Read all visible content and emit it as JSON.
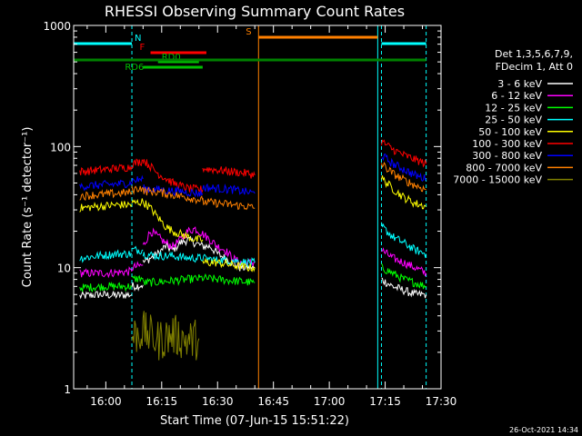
{
  "chart_data": {
    "type": "line",
    "title": "RHESSI Observing Summary Count Rates",
    "xlabel": "Start Time (07-Jun-15 15:51:22)",
    "ylabel": "Count Rate (s⁻¹ detector⁻¹)",
    "yscale": "log",
    "ylim": [
      1,
      1000
    ],
    "xlim": [
      "15:51:22",
      "17:30:00"
    ],
    "x_ticks": [
      "16:00",
      "16:15",
      "16:30",
      "16:45",
      "17:00",
      "17:15",
      "17:30"
    ],
    "y_ticks": [
      "1",
      "10",
      "100",
      "1000"
    ],
    "legend": {
      "placement": "right",
      "header": [
        "Det 1,3,5,6,7,9,",
        "FDecim 1, Att 0"
      ]
    },
    "series": [
      {
        "name": "3 - 6 keV",
        "color": "#ffffff",
        "segments": [
          {
            "x": [
              "15:53",
              "15:58",
              "16:03",
              "16:07"
            ],
            "y": [
              5.8,
              6.0,
              5.9,
              6.0
            ]
          },
          {
            "x": [
              "16:07",
              "16:10"
            ],
            "y": [
              7.0,
              7.2
            ]
          },
          {
            "x": [
              "16:10",
              "16:12",
              "16:14",
              "16:16",
              "16:18",
              "16:20",
              "16:22",
              "16:24",
              "16:26",
              "16:28",
              "16:30",
              "16:32",
              "16:34",
              "16:36",
              "16:38",
              "16:40"
            ],
            "y": [
              11,
              12,
              13,
              15,
              14,
              16,
              17,
              16,
              15,
              15,
              13,
              12,
              11,
              10,
              10,
              10
            ]
          },
          {
            "x": [
              "17:14",
              "17:17",
              "17:20",
              "17:23",
              "17:26"
            ],
            "y": [
              8,
              7,
              6.5,
              6,
              6
            ]
          }
        ]
      },
      {
        "name": "6 - 12 keV",
        "color": "#ff00ff",
        "segments": [
          {
            "x": [
              "15:53",
              "16:00",
              "16:07"
            ],
            "y": [
              9,
              9,
              9.3
            ]
          },
          {
            "x": [
              "16:07",
              "16:10"
            ],
            "y": [
              10,
              10.5
            ]
          },
          {
            "x": [
              "16:10",
              "16:12",
              "16:14",
              "16:16",
              "16:18",
              "16:20",
              "16:22",
              "16:24",
              "16:26",
              "16:28",
              "16:30",
              "16:32",
              "16:34",
              "16:36",
              "16:38",
              "16:40"
            ],
            "y": [
              15,
              20,
              18,
              16,
              15,
              17,
              20,
              21,
              19,
              17,
              15,
              14,
              12,
              11,
              11,
              11
            ]
          },
          {
            "x": [
              "17:14",
              "17:17",
              "17:20",
              "17:23",
              "17:26"
            ],
            "y": [
              14,
              12,
              11,
              10,
              9
            ]
          }
        ]
      },
      {
        "name": "12 - 25 keV",
        "color": "#00ff00",
        "segments": [
          {
            "x": [
              "15:53",
              "16:00",
              "16:07"
            ],
            "y": [
              6.8,
              7,
              7
            ]
          },
          {
            "x": [
              "16:07",
              "16:10"
            ],
            "y": [
              8,
              8.2
            ]
          },
          {
            "x": [
              "16:10",
              "16:14",
              "16:18",
              "16:22",
              "16:26",
              "16:30",
              "16:34",
              "16:40"
            ],
            "y": [
              7.5,
              7.6,
              7.8,
              8,
              8.2,
              8,
              7.8,
              7.5
            ]
          },
          {
            "x": [
              "17:14",
              "17:17",
              "17:20",
              "17:23",
              "17:26"
            ],
            "y": [
              10,
              9,
              8,
              7.5,
              7
            ]
          }
        ]
      },
      {
        "name": "25 - 50 keV",
        "color": "#00ffff",
        "segments": [
          {
            "x": [
              "15:53",
              "15:58",
              "16:03",
              "16:07"
            ],
            "y": [
              12,
              12.5,
              13,
              13
            ]
          },
          {
            "x": [
              "16:07",
              "16:10"
            ],
            "y": [
              14,
              14
            ]
          },
          {
            "x": [
              "16:10",
              "16:14",
              "16:18",
              "16:22",
              "16:26",
              "16:30",
              "16:34",
              "16:38",
              "16:40"
            ],
            "y": [
              13,
              12.5,
              12.5,
              12,
              12,
              11.5,
              11.5,
              11,
              11
            ]
          },
          {
            "x": [
              "17:14",
              "17:17",
              "17:20",
              "17:23",
              "17:26"
            ],
            "y": [
              22,
              18,
              16,
              14,
              13
            ]
          }
        ]
      },
      {
        "name": "50 - 100 keV",
        "color": "#ffff00",
        "segments": [
          {
            "x": [
              "15:53",
              "15:58",
              "16:03",
              "16:07"
            ],
            "y": [
              31,
              32,
              33,
              33
            ]
          },
          {
            "x": [
              "16:07",
              "16:10"
            ],
            "y": [
              34,
              35
            ]
          },
          {
            "x": [
              "16:10",
              "16:12",
              "16:14",
              "16:16",
              "16:18",
              "16:20",
              "16:22",
              "16:24",
              "16:26"
            ],
            "y": [
              35,
              31,
              26,
              22,
              20,
              19,
              18,
              17,
              17
            ]
          },
          {
            "x": [
              "16:26",
              "16:30",
              "16:34",
              "16:38",
              "16:40"
            ],
            "y": [
              11,
              11,
              10.5,
              10,
              10
            ]
          },
          {
            "x": [
              "17:14",
              "17:17",
              "17:20",
              "17:23",
              "17:26"
            ],
            "y": [
              55,
              45,
              38,
              34,
              32
            ]
          }
        ]
      },
      {
        "name": "100 - 300 keV",
        "color": "#ff0000",
        "segments": [
          {
            "x": [
              "15:53",
              "15:58",
              "16:03",
              "16:07"
            ],
            "y": [
              62,
              64,
              66,
              68
            ]
          },
          {
            "x": [
              "16:07",
              "16:10"
            ],
            "y": [
              72,
              76
            ]
          },
          {
            "x": [
              "16:10",
              "16:14",
              "16:18",
              "16:22",
              "16:26"
            ],
            "y": [
              78,
              60,
              50,
              45,
              44
            ]
          },
          {
            "x": [
              "16:26",
              "16:30",
              "16:34",
              "16:38",
              "16:40"
            ],
            "y": [
              66,
              64,
              62,
              60,
              58
            ]
          },
          {
            "x": [
              "17:14",
              "17:17",
              "17:20",
              "17:23",
              "17:26"
            ],
            "y": [
              110,
              95,
              85,
              78,
              72
            ]
          }
        ]
      },
      {
        "name": "300 - 800 keV",
        "color": "#0000ff",
        "segments": [
          {
            "x": [
              "15:53",
              "15:58",
              "16:03",
              "16:07"
            ],
            "y": [
              47,
              48,
              49,
              50
            ]
          },
          {
            "x": [
              "16:07",
              "16:10"
            ],
            "y": [
              52,
              54
            ]
          },
          {
            "x": [
              "16:10",
              "16:14",
              "16:18",
              "16:22",
              "16:26"
            ],
            "y": [
              45,
              44,
              43,
              42,
              41
            ]
          },
          {
            "x": [
              "16:26",
              "16:30",
              "16:34",
              "16:38",
              "16:40"
            ],
            "y": [
              46,
              45,
              44,
              42,
              41
            ]
          },
          {
            "x": [
              "17:14",
              "17:17",
              "17:20",
              "17:23",
              "17:26"
            ],
            "y": [
              85,
              72,
              65,
              58,
              54
            ]
          }
        ]
      },
      {
        "name": "800 - 7000 keV",
        "color": "#ff8000",
        "segments": [
          {
            "x": [
              "15:53",
              "15:58",
              "16:03",
              "16:07"
            ],
            "y": [
              39,
              40,
              41,
              42
            ]
          },
          {
            "x": [
              "16:07",
              "16:10"
            ],
            "y": [
              44,
              46
            ]
          },
          {
            "x": [
              "16:10",
              "16:14",
              "16:18",
              "16:22",
              "16:26"
            ],
            "y": [
              43,
              42,
              40,
              38,
              36
            ]
          },
          {
            "x": [
              "16:26",
              "16:30",
              "16:34",
              "16:38",
              "16:40"
            ],
            "y": [
              35,
              34,
              33,
              32,
              31
            ]
          },
          {
            "x": [
              "17:14",
              "17:17",
              "17:20",
              "17:23",
              "17:26"
            ],
            "y": [
              72,
              60,
              53,
              48,
              44
            ]
          }
        ]
      },
      {
        "name": "7000 - 15000 keV",
        "color": "#808000",
        "segments": [
          {
            "x": [
              "16:07",
              "16:10",
              "16:14",
              "16:18",
              "16:22",
              "16:25"
            ],
            "y": [
              2.7,
              3,
              2.5,
              2.8,
              2.5,
              2.6
            ]
          }
        ]
      }
    ],
    "annotations": [
      {
        "label": "N",
        "color": "#00ffff",
        "ranges": [
          [
            "15:51:22",
            "16:07"
          ],
          [
            "17:14",
            "17:26"
          ]
        ]
      },
      {
        "label": "F",
        "color": "#ff0000",
        "ranges": [
          [
            "16:12",
            "16:27"
          ]
        ]
      },
      {
        "label": "RD0",
        "color": "#00c000",
        "ranges": [
          [
            "16:14",
            "16:25"
          ]
        ]
      },
      {
        "label": "RD6",
        "color": "#00c000",
        "ranges": [
          [
            "16:10",
            "16:26"
          ]
        ]
      },
      {
        "label": "S",
        "color": "#ff8000",
        "ranges": [
          [
            "16:41",
            "17:13"
          ]
        ]
      }
    ],
    "green_bar": {
      "range": [
        "15:51:22",
        "17:26"
      ]
    },
    "markers": [
      {
        "time": "15:51:22",
        "color": "#00ffff",
        "style": "solid"
      },
      {
        "time": "16:07",
        "color": "#00ffff",
        "style": "dashed"
      },
      {
        "time": "16:41",
        "color": "#ff8000",
        "style": "solid"
      },
      {
        "time": "17:13",
        "color": "#00ffff",
        "style": "solid"
      },
      {
        "time": "17:14",
        "color": "#00ffff",
        "style": "dashed"
      },
      {
        "time": "17:26",
        "color": "#00ffff",
        "style": "dashed"
      }
    ],
    "timestamp": "26-Oct-2021 14:34"
  }
}
